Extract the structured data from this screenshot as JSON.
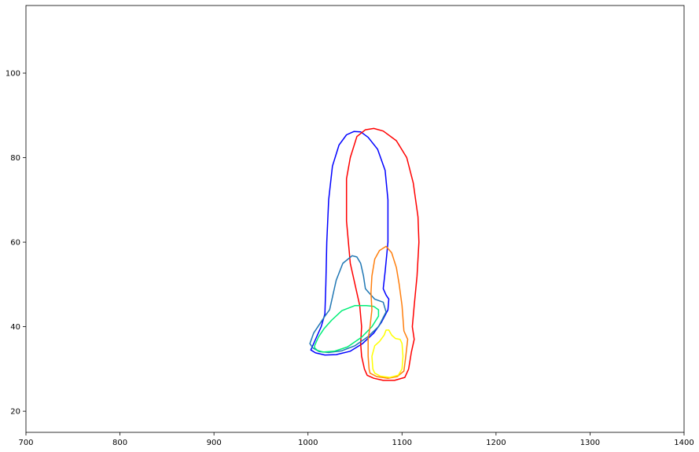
{
  "chart_data": {
    "type": "line",
    "title": "",
    "xlabel": "",
    "ylabel": "",
    "xlim": [
      700,
      1400
    ],
    "ylim": [
      15,
      116
    ],
    "xticks": [
      700,
      800,
      900,
      1000,
      1100,
      1200,
      1300,
      1400
    ],
    "yticks": [
      20,
      40,
      60,
      80,
      100
    ],
    "grid": false,
    "legend": "none",
    "series": [
      {
        "color": "#0000ff",
        "closed": true,
        "points": [
          [
            1004,
            35.0
          ],
          [
            1009,
            37.5
          ],
          [
            1014,
            40.0
          ],
          [
            1018,
            43.0
          ],
          [
            1019,
            50.0
          ],
          [
            1020,
            60.0
          ],
          [
            1022,
            70.0
          ],
          [
            1026,
            78.0
          ],
          [
            1033,
            83.0
          ],
          [
            1041,
            85.4
          ],
          [
            1049,
            86.2
          ],
          [
            1056,
            86.1
          ],
          [
            1064,
            84.8
          ],
          [
            1074,
            82.0
          ],
          [
            1082,
            77.0
          ],
          [
            1085,
            70.0
          ],
          [
            1085,
            60.0
          ],
          [
            1082,
            53.0
          ],
          [
            1080,
            49.0
          ],
          [
            1083,
            47.5
          ],
          [
            1086,
            46.5
          ],
          [
            1085,
            44.0
          ],
          [
            1078,
            41.0
          ],
          [
            1070,
            38.5
          ],
          [
            1058,
            36.0
          ],
          [
            1045,
            34.2
          ],
          [
            1030,
            33.4
          ],
          [
            1018,
            33.3
          ],
          [
            1008,
            33.8
          ],
          [
            1003,
            34.5
          ]
        ]
      },
      {
        "color": "#ff0000",
        "closed": true,
        "points": [
          [
            1060,
            30.0
          ],
          [
            1057,
            33.0
          ],
          [
            1056,
            36.0
          ],
          [
            1057,
            40.0
          ],
          [
            1055,
            45.0
          ],
          [
            1050,
            50.0
          ],
          [
            1045,
            55.0
          ],
          [
            1041,
            65.0
          ],
          [
            1041,
            75.0
          ],
          [
            1045,
            80.0
          ],
          [
            1052,
            85.0
          ],
          [
            1061,
            86.6
          ],
          [
            1070,
            86.9
          ],
          [
            1080,
            86.3
          ],
          [
            1094,
            84.0
          ],
          [
            1105,
            80.0
          ],
          [
            1112,
            74.0
          ],
          [
            1117,
            66.0
          ],
          [
            1118,
            60.0
          ],
          [
            1116,
            52.0
          ],
          [
            1113,
            45.0
          ],
          [
            1111,
            40.0
          ],
          [
            1113,
            37.0
          ],
          [
            1110,
            34.0
          ],
          [
            1107,
            30.0
          ],
          [
            1103,
            28.0
          ],
          [
            1092,
            27.3
          ],
          [
            1080,
            27.3
          ],
          [
            1070,
            27.8
          ],
          [
            1063,
            28.5
          ]
        ]
      },
      {
        "color": "#1f77b4",
        "closed": true,
        "points": [
          [
            1002,
            36.0
          ],
          [
            1006,
            38.5
          ],
          [
            1012,
            40.5
          ],
          [
            1018,
            42.5
          ],
          [
            1023,
            44.0
          ],
          [
            1026,
            47.0
          ],
          [
            1030,
            51.0
          ],
          [
            1037,
            55.0
          ],
          [
            1047,
            56.8
          ],
          [
            1052,
            56.5
          ],
          [
            1056,
            55.0
          ],
          [
            1059,
            52.0
          ],
          [
            1061,
            49.0
          ],
          [
            1063,
            48.5
          ],
          [
            1071,
            46.5
          ],
          [
            1080,
            45.8
          ],
          [
            1083,
            43.5
          ],
          [
            1075,
            40.0
          ],
          [
            1063,
            37.5
          ],
          [
            1050,
            35.5
          ],
          [
            1036,
            34.3
          ],
          [
            1022,
            33.9
          ],
          [
            1012,
            34.1
          ],
          [
            1005,
            35.0
          ]
        ]
      },
      {
        "color": "#00ee77",
        "closed": true,
        "points": [
          [
            1007,
            35.5
          ],
          [
            1011,
            37.5
          ],
          [
            1017,
            39.5
          ],
          [
            1025,
            41.5
          ],
          [
            1036,
            43.8
          ],
          [
            1050,
            45.0
          ],
          [
            1062,
            45.0
          ],
          [
            1070,
            44.8
          ],
          [
            1075,
            44.0
          ],
          [
            1075,
            42.5
          ],
          [
            1068,
            40.0
          ],
          [
            1057,
            37.5
          ],
          [
            1042,
            35.2
          ],
          [
            1028,
            34.2
          ],
          [
            1016,
            34.0
          ],
          [
            1010,
            34.4
          ],
          [
            1007,
            35.0
          ]
        ]
      },
      {
        "color": "#ff7f0e",
        "closed": true,
        "points": [
          [
            1065,
            30.0
          ],
          [
            1064,
            33.0
          ],
          [
            1064,
            37.0
          ],
          [
            1066,
            40.0
          ],
          [
            1068,
            44.0
          ],
          [
            1067,
            48.0
          ],
          [
            1068,
            52.0
          ],
          [
            1071,
            56.0
          ],
          [
            1076,
            58.0
          ],
          [
            1083,
            59.0
          ],
          [
            1089,
            57.5
          ],
          [
            1094,
            54.0
          ],
          [
            1097,
            50.0
          ],
          [
            1100,
            45.0
          ],
          [
            1102,
            39.0
          ],
          [
            1106,
            37.0
          ],
          [
            1104,
            33.0
          ],
          [
            1102,
            29.5
          ],
          [
            1095,
            28.2
          ],
          [
            1085,
            27.8
          ],
          [
            1073,
            28.2
          ],
          [
            1066,
            29.0
          ]
        ]
      },
      {
        "color": "#ffff00",
        "closed": true,
        "points": [
          [
            1069,
            30.0
          ],
          [
            1068,
            33.0
          ],
          [
            1071,
            35.5
          ],
          [
            1076,
            36.5
          ],
          [
            1081,
            38.0
          ],
          [
            1083,
            39.2
          ],
          [
            1086,
            39.2
          ],
          [
            1089,
            38.0
          ],
          [
            1093,
            37.2
          ],
          [
            1098,
            37.0
          ],
          [
            1100,
            36.0
          ],
          [
            1101,
            33.0
          ],
          [
            1100,
            30.0
          ],
          [
            1096,
            28.5
          ],
          [
            1087,
            28.0
          ],
          [
            1077,
            28.3
          ],
          [
            1071,
            29.0
          ]
        ]
      }
    ]
  }
}
